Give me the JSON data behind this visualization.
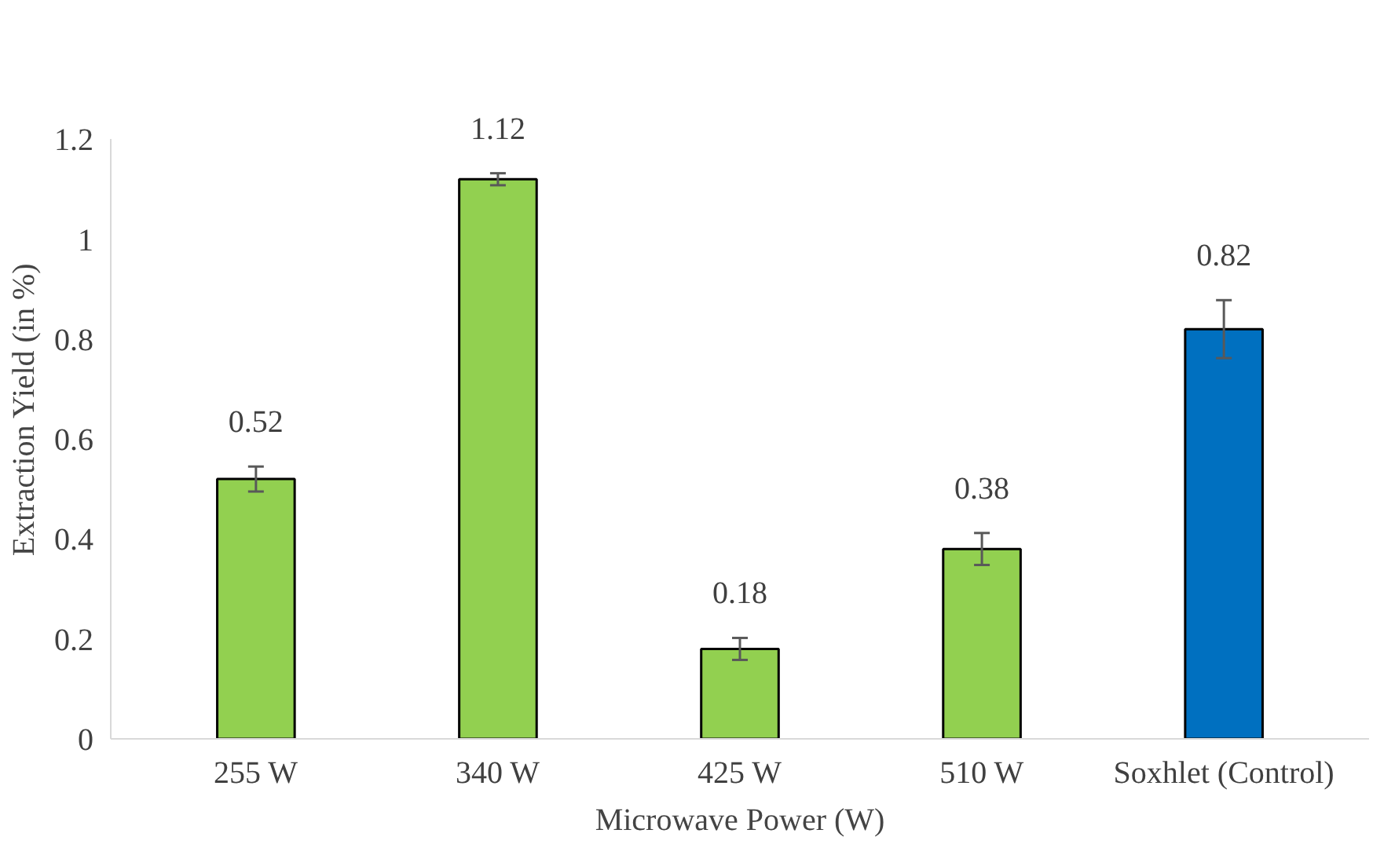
{
  "chart_data": {
    "type": "bar",
    "xlabel": "Microwave Power (W)",
    "ylabel": "Extraction Yield (in %)",
    "categories": [
      "255 W",
      "340 W",
      "425 W",
      "510 W",
      "Soxhlet (Control)"
    ],
    "values": [
      0.52,
      1.12,
      0.18,
      0.38,
      0.82
    ],
    "colors": [
      "#92d050",
      "#92d050",
      "#92d050",
      "#92d050",
      "#0070c0"
    ],
    "errors": [
      0.025,
      0.012,
      0.022,
      0.032,
      0.058
    ],
    "data_labels": true,
    "ylim": [
      0,
      1.2
    ],
    "yticks": [
      0,
      0.2,
      0.4,
      0.6,
      0.8,
      1,
      1.2
    ],
    "grid": false
  }
}
